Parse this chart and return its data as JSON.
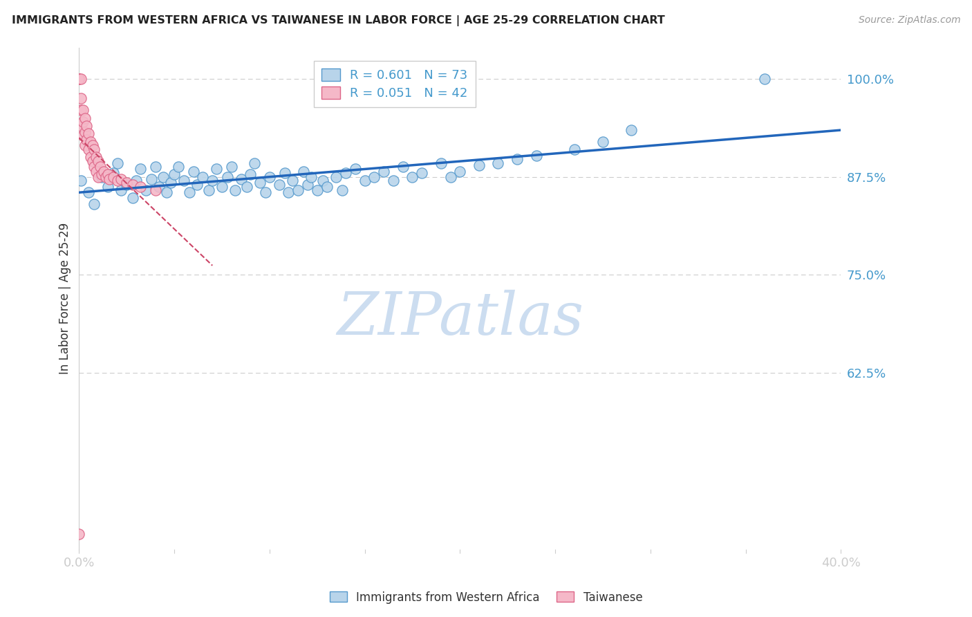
{
  "title": "IMMIGRANTS FROM WESTERN AFRICA VS TAIWANESE IN LABOR FORCE | AGE 25-29 CORRELATION CHART",
  "source": "Source: ZipAtlas.com",
  "ylabel": "In Labor Force | Age 25-29",
  "xlim": [
    0.0,
    0.4
  ],
  "ylim": [
    0.4,
    1.04
  ],
  "yticks": [
    0.625,
    0.75,
    0.875,
    1.0
  ],
  "ytick_labels": [
    "62.5%",
    "75.0%",
    "87.5%",
    "100.0%"
  ],
  "xticks": [
    0.0,
    0.05,
    0.1,
    0.15,
    0.2,
    0.25,
    0.3,
    0.35,
    0.4
  ],
  "xtick_labels": [
    "0.0%",
    "",
    "",
    "",
    "",
    "",
    "",
    "",
    "40.0%"
  ],
  "blue_R": 0.601,
  "blue_N": 73,
  "pink_R": 0.051,
  "pink_N": 42,
  "blue_face": "#b8d4ea",
  "pink_face": "#f5b8c8",
  "blue_edge": "#5599cc",
  "pink_edge": "#dd6688",
  "blue_line": "#2266bb",
  "pink_line": "#cc4466",
  "pink_line_style": "--",
  "tick_color": "#4499cc",
  "title_color": "#222222",
  "grid_color": "#cccccc",
  "watermark_color": "#ddeeff",
  "watermark": "ZIPatlas",
  "legend_label_blue": "Immigrants from Western Africa",
  "legend_label_pink": "Taiwanese",
  "blue_x": [
    0.001,
    0.005,
    0.008,
    0.012,
    0.015,
    0.018,
    0.02,
    0.022,
    0.025,
    0.028,
    0.03,
    0.032,
    0.035,
    0.038,
    0.04,
    0.042,
    0.044,
    0.046,
    0.048,
    0.05,
    0.052,
    0.055,
    0.058,
    0.06,
    0.062,
    0.065,
    0.068,
    0.07,
    0.072,
    0.075,
    0.078,
    0.08,
    0.082,
    0.085,
    0.088,
    0.09,
    0.092,
    0.095,
    0.098,
    0.1,
    0.105,
    0.108,
    0.11,
    0.112,
    0.115,
    0.118,
    0.12,
    0.122,
    0.125,
    0.128,
    0.13,
    0.135,
    0.138,
    0.14,
    0.145,
    0.15,
    0.155,
    0.16,
    0.165,
    0.17,
    0.175,
    0.18,
    0.19,
    0.195,
    0.2,
    0.21,
    0.22,
    0.23,
    0.24,
    0.26,
    0.275,
    0.29,
    0.36
  ],
  "blue_y": [
    0.87,
    0.855,
    0.84,
    0.875,
    0.862,
    0.88,
    0.892,
    0.858,
    0.865,
    0.848,
    0.87,
    0.885,
    0.858,
    0.872,
    0.888,
    0.862,
    0.875,
    0.855,
    0.868,
    0.878,
    0.888,
    0.87,
    0.855,
    0.882,
    0.865,
    0.875,
    0.858,
    0.87,
    0.885,
    0.862,
    0.875,
    0.888,
    0.858,
    0.872,
    0.862,
    0.878,
    0.892,
    0.868,
    0.855,
    0.875,
    0.865,
    0.88,
    0.855,
    0.87,
    0.858,
    0.882,
    0.865,
    0.875,
    0.858,
    0.87,
    0.862,
    0.875,
    0.858,
    0.88,
    0.885,
    0.87,
    0.875,
    0.882,
    0.87,
    0.888,
    0.875,
    0.88,
    0.892,
    0.875,
    0.882,
    0.89,
    0.892,
    0.898,
    0.902,
    0.91,
    0.92,
    0.935,
    1.0
  ],
  "pink_x": [
    0.0,
    0.0,
    0.0,
    0.0,
    0.001,
    0.001,
    0.001,
    0.001,
    0.002,
    0.002,
    0.002,
    0.003,
    0.003,
    0.003,
    0.004,
    0.004,
    0.005,
    0.005,
    0.006,
    0.006,
    0.007,
    0.007,
    0.008,
    0.008,
    0.009,
    0.009,
    0.01,
    0.01,
    0.011,
    0.012,
    0.013,
    0.014,
    0.015,
    0.016,
    0.018,
    0.02,
    0.022,
    0.025,
    0.028,
    0.032,
    0.04,
    0.0
  ],
  "pink_y": [
    1.0,
    1.0,
    1.0,
    1.0,
    1.0,
    0.975,
    0.96,
    0.94,
    0.96,
    0.945,
    0.928,
    0.95,
    0.932,
    0.915,
    0.94,
    0.922,
    0.93,
    0.91,
    0.92,
    0.9,
    0.915,
    0.895,
    0.91,
    0.888,
    0.9,
    0.882,
    0.895,
    0.875,
    0.888,
    0.878,
    0.882,
    0.875,
    0.878,
    0.872,
    0.875,
    0.87,
    0.872,
    0.868,
    0.865,
    0.862,
    0.858,
    0.42
  ]
}
